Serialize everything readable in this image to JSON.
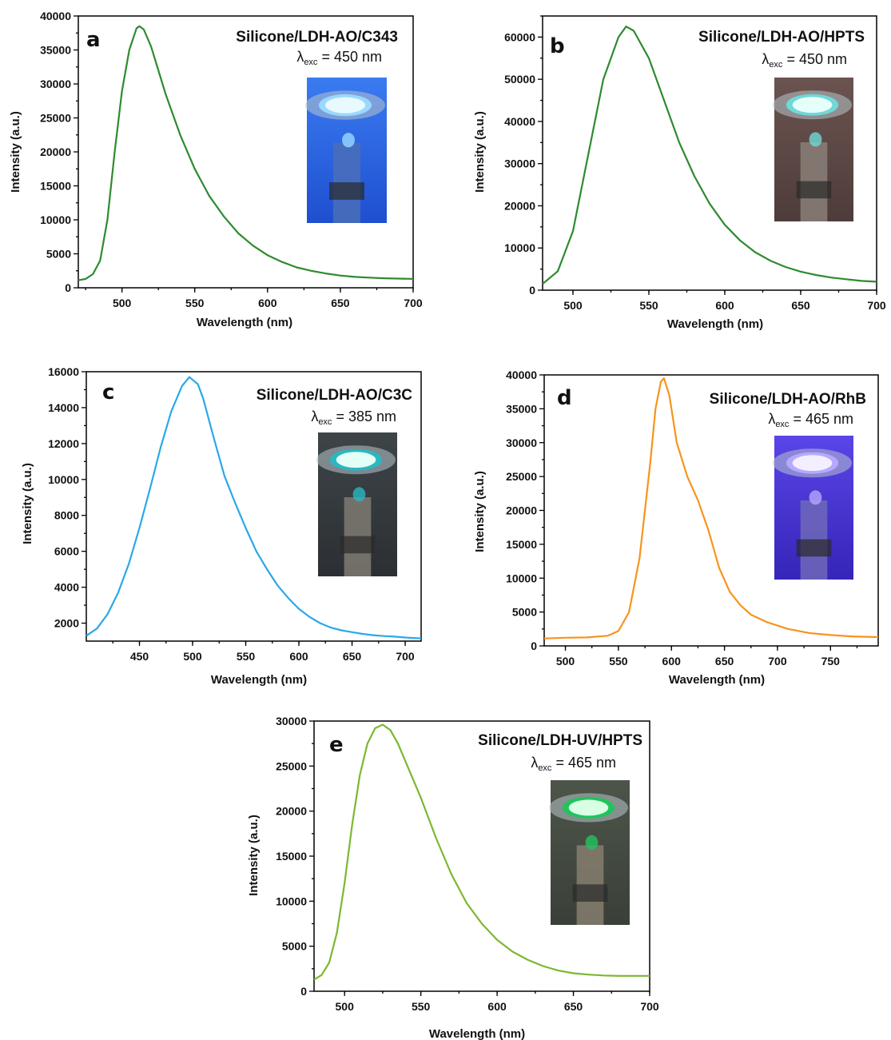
{
  "chart_data": [
    {
      "type": "line",
      "panel": "a",
      "legend_title": "Silicone/LDH-AO/C343",
      "excitation": {
        "lambda": "λ",
        "sub": "exc",
        "value": "= 450 nm"
      },
      "xlabel": "Wavelength (nm)",
      "ylabel": "Intensity (a.u.)",
      "xlim": [
        470,
        700
      ],
      "ylim": [
        0,
        40000
      ],
      "xticks": [
        500,
        550,
        600,
        650,
        700
      ],
      "yticks": [
        0,
        5000,
        10000,
        15000,
        20000,
        25000,
        30000,
        35000,
        40000
      ],
      "color": "#2e8b2e",
      "inset_photo": "blue-lit sample holder",
      "series": [
        {
          "x": [
            470,
            475,
            480,
            485,
            490,
            495,
            500,
            505,
            510,
            512,
            515,
            520,
            525,
            530,
            540,
            550,
            560,
            570,
            580,
            590,
            600,
            610,
            620,
            630,
            640,
            650,
            660,
            670,
            680,
            690,
            700
          ],
          "y": [
            1100,
            1300,
            2000,
            4000,
            10000,
            20000,
            29000,
            35000,
            38200,
            38500,
            38000,
            35500,
            32000,
            28500,
            22500,
            17500,
            13500,
            10500,
            8000,
            6200,
            4800,
            3800,
            3000,
            2500,
            2100,
            1800,
            1600,
            1500,
            1400,
            1350,
            1300
          ]
        }
      ]
    },
    {
      "type": "line",
      "panel": "b",
      "legend_title": "Silicone/LDH-AO/HPTS",
      "excitation": {
        "lambda": "λ",
        "sub": "exc",
        "value": "= 450 nm"
      },
      "xlabel": "Wavelength (nm)",
      "ylabel": "Intensity (a.u.)",
      "xlim": [
        480,
        700
      ],
      "ylim": [
        0,
        65000
      ],
      "xticks": [
        500,
        550,
        600,
        650,
        700
      ],
      "yticks": [
        0,
        10000,
        20000,
        30000,
        40000,
        50000,
        60000
      ],
      "color": "#2e8b2e",
      "inset_photo": "cyan-lit sample holder",
      "series": [
        {
          "x": [
            480,
            490,
            500,
            510,
            520,
            530,
            535,
            540,
            550,
            560,
            570,
            580,
            590,
            600,
            610,
            620,
            630,
            640,
            650,
            660,
            670,
            680,
            690,
            700
          ],
          "y": [
            1500,
            4500,
            14000,
            32000,
            50000,
            60000,
            62500,
            61500,
            55000,
            45000,
            35000,
            27000,
            20500,
            15500,
            11800,
            9000,
            7000,
            5500,
            4400,
            3600,
            3000,
            2600,
            2200,
            2000
          ]
        }
      ]
    },
    {
      "type": "line",
      "panel": "c",
      "legend_title": "Silicone/LDH-AO/C3C",
      "excitation": {
        "lambda": "λ",
        "sub": "exc",
        "value": "= 385 nm"
      },
      "xlabel": "Wavelength (nm)",
      "ylabel": "Intensity (a.u.)",
      "xlim": [
        400,
        715
      ],
      "ylim": [
        1000,
        16000
      ],
      "xticks": [
        450,
        500,
        550,
        600,
        650,
        700
      ],
      "yticks": [
        2000,
        4000,
        6000,
        8000,
        10000,
        12000,
        14000,
        16000
      ],
      "color": "#29a8e8",
      "inset_photo": "teal-lit sample holder",
      "series": [
        {
          "x": [
            400,
            410,
            420,
            430,
            440,
            450,
            460,
            470,
            480,
            490,
            497,
            505,
            510,
            520,
            530,
            540,
            550,
            560,
            570,
            580,
            590,
            600,
            610,
            620,
            630,
            640,
            650,
            660,
            670,
            680,
            690,
            700,
            715
          ],
          "y": [
            1300,
            1700,
            2500,
            3700,
            5300,
            7300,
            9500,
            11800,
            13800,
            15200,
            15700,
            15300,
            14500,
            12300,
            10200,
            8700,
            7300,
            6000,
            5000,
            4100,
            3400,
            2800,
            2350,
            2000,
            1750,
            1600,
            1500,
            1400,
            1330,
            1280,
            1250,
            1200,
            1150
          ]
        }
      ]
    },
    {
      "type": "line",
      "panel": "d",
      "legend_title": "Silicone/LDH-AO/RhB",
      "excitation": {
        "lambda": "λ",
        "sub": "exc",
        "value": "= 465 nm"
      },
      "xlabel": "Wavelength (nm)",
      "ylabel": "Intensity (a.u.)",
      "xlim": [
        480,
        795
      ],
      "ylim": [
        0,
        40000
      ],
      "xticks": [
        500,
        550,
        600,
        650,
        700,
        750
      ],
      "yticks": [
        0,
        5000,
        10000,
        15000,
        20000,
        25000,
        30000,
        35000,
        40000
      ],
      "color": "#f7941d",
      "inset_photo": "violet-lit sample holder",
      "series": [
        {
          "x": [
            480,
            500,
            520,
            540,
            550,
            560,
            570,
            580,
            585,
            590,
            593,
            598,
            605,
            615,
            625,
            635,
            645,
            655,
            665,
            675,
            690,
            710,
            730,
            750,
            770,
            795
          ],
          "y": [
            1100,
            1200,
            1250,
            1500,
            2200,
            5000,
            13000,
            27000,
            35000,
            39000,
            39500,
            37000,
            30000,
            25000,
            21500,
            17000,
            11500,
            8000,
            6000,
            4600,
            3500,
            2500,
            1900,
            1600,
            1400,
            1300
          ]
        }
      ]
    },
    {
      "type": "line",
      "panel": "e",
      "legend_title": "Silicone/LDH-UV/HPTS",
      "excitation": {
        "lambda": "λ",
        "sub": "exc",
        "value": "= 465 nm"
      },
      "xlabel": "Wavelength (nm)",
      "ylabel": "Intensity (a.u.)",
      "xlim": [
        480,
        700
      ],
      "ylim": [
        0,
        30000
      ],
      "xticks": [
        500,
        550,
        600,
        650,
        700
      ],
      "yticks": [
        0,
        5000,
        10000,
        15000,
        20000,
        25000,
        30000
      ],
      "color": "#7cb82f",
      "inset_photo": "green-lit sample holder",
      "series": [
        {
          "x": [
            480,
            485,
            490,
            495,
            500,
            505,
            510,
            515,
            520,
            525,
            530,
            535,
            540,
            550,
            560,
            570,
            580,
            590,
            600,
            610,
            620,
            630,
            640,
            650,
            660,
            670,
            680,
            690,
            700
          ],
          "y": [
            1300,
            1800,
            3200,
            6500,
            12000,
            18500,
            24000,
            27500,
            29200,
            29600,
            29000,
            27500,
            25500,
            21500,
            17000,
            13000,
            9800,
            7500,
            5700,
            4400,
            3500,
            2800,
            2300,
            2000,
            1850,
            1750,
            1700,
            1700,
            1700
          ]
        }
      ]
    }
  ]
}
